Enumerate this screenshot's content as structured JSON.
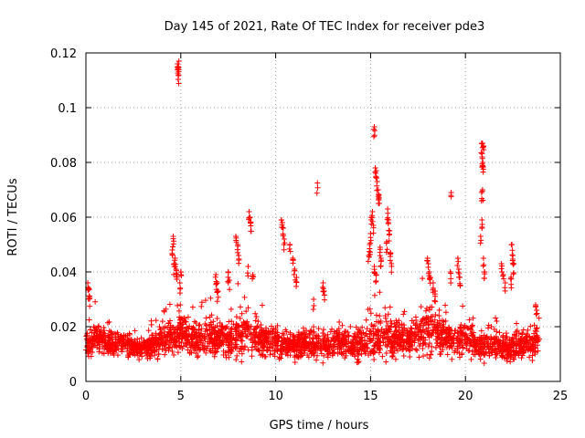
{
  "colors": {
    "series": "#ff0000",
    "axis": "#000000",
    "grid": "#a0a0a0"
  },
  "chart_data": {
    "type": "scatter",
    "title": "Day 145 of 2021, Rate Of TEC Index for receiver pde3",
    "xlabel": "GPS time / hours",
    "ylabel": "ROTI / TECUs",
    "xlim": [
      0,
      25
    ],
    "ylim": [
      0,
      0.12
    ],
    "xticks": [
      0,
      5,
      10,
      15,
      20,
      25
    ],
    "yticks": [
      0,
      0.02,
      0.04,
      0.06,
      0.08,
      0.1,
      0.12
    ],
    "xtick_labels": [
      "0",
      "5",
      "10",
      "15",
      "20",
      "25"
    ],
    "ytick_labels": [
      "0",
      "0.02",
      "0.04",
      "0.06",
      "0.08",
      "0.1",
      "0.12"
    ],
    "grid": true,
    "marker": "+",
    "series": [
      {
        "name": "ROTI",
        "baseline": {
          "x": [
            0,
            0.5,
            1,
            1.5,
            2,
            2.5,
            3,
            3.5,
            4,
            4.5,
            5,
            5.5,
            6,
            6.5,
            7,
            7.5,
            8,
            8.5,
            9,
            9.5,
            10,
            10.5,
            11,
            11.5,
            12,
            12.5,
            13,
            13.5,
            14,
            14.5,
            15,
            15.5,
            16,
            16.5,
            17,
            17.5,
            18,
            18.5,
            19,
            19.5,
            20,
            20.5,
            21,
            21.5,
            22,
            22.5,
            23,
            23.5,
            23.9
          ],
          "y": [
            0.013,
            0.016,
            0.014,
            0.013,
            0.014,
            0.012,
            0.012,
            0.013,
            0.015,
            0.017,
            0.018,
            0.016,
            0.015,
            0.016,
            0.015,
            0.016,
            0.016,
            0.018,
            0.016,
            0.015,
            0.014,
            0.014,
            0.013,
            0.014,
            0.013,
            0.014,
            0.013,
            0.014,
            0.013,
            0.014,
            0.015,
            0.016,
            0.016,
            0.016,
            0.015,
            0.017,
            0.018,
            0.017,
            0.016,
            0.015,
            0.016,
            0.014,
            0.013,
            0.013,
            0.013,
            0.012,
            0.013,
            0.013,
            0.014
          ],
          "spread": [
            0.005,
            0.006,
            0.005,
            0.005,
            0.004,
            0.004,
            0.004,
            0.005,
            0.006,
            0.007,
            0.007,
            0.006,
            0.006,
            0.007,
            0.007,
            0.008,
            0.007,
            0.008,
            0.007,
            0.006,
            0.005,
            0.005,
            0.005,
            0.005,
            0.005,
            0.006,
            0.005,
            0.005,
            0.005,
            0.006,
            0.008,
            0.008,
            0.007,
            0.007,
            0.007,
            0.008,
            0.009,
            0.008,
            0.007,
            0.007,
            0.007,
            0.006,
            0.005,
            0.005,
            0.005,
            0.005,
            0.005,
            0.005,
            0.006
          ]
        },
        "spikes": [
          {
            "x": 0.1,
            "y": 0.036
          },
          {
            "x": 0.15,
            "y": 0.034
          },
          {
            "x": 0.2,
            "y": 0.031
          },
          {
            "x": 4.6,
            "y": 0.053
          },
          {
            "x": 4.55,
            "y": 0.048
          },
          {
            "x": 4.7,
            "y": 0.045
          },
          {
            "x": 4.75,
            "y": 0.041
          },
          {
            "x": 4.8,
            "y": 0.039
          },
          {
            "x": 4.65,
            "y": 0.043
          },
          {
            "x": 4.83,
            "y": 0.116
          },
          {
            "x": 4.86,
            "y": 0.115
          },
          {
            "x": 4.9,
            "y": 0.117
          },
          {
            "x": 4.88,
            "y": 0.112
          },
          {
            "x": 5.0,
            "y": 0.04
          },
          {
            "x": 4.95,
            "y": 0.036
          },
          {
            "x": 6.85,
            "y": 0.039
          },
          {
            "x": 6.9,
            "y": 0.036
          },
          {
            "x": 6.95,
            "y": 0.033
          },
          {
            "x": 7.5,
            "y": 0.04
          },
          {
            "x": 7.55,
            "y": 0.037
          },
          {
            "x": 7.9,
            "y": 0.053
          },
          {
            "x": 8.0,
            "y": 0.05
          },
          {
            "x": 8.05,
            "y": 0.046
          },
          {
            "x": 8.6,
            "y": 0.062
          },
          {
            "x": 8.65,
            "y": 0.06
          },
          {
            "x": 8.7,
            "y": 0.058
          },
          {
            "x": 8.55,
            "y": 0.042
          },
          {
            "x": 8.8,
            "y": 0.039
          },
          {
            "x": 10.3,
            "y": 0.059
          },
          {
            "x": 10.35,
            "y": 0.058
          },
          {
            "x": 10.4,
            "y": 0.056
          },
          {
            "x": 10.45,
            "y": 0.052
          },
          {
            "x": 10.75,
            "y": 0.05
          },
          {
            "x": 10.9,
            "y": 0.045
          },
          {
            "x": 11.0,
            "y": 0.041
          },
          {
            "x": 11.1,
            "y": 0.038
          },
          {
            "x": 12.2,
            "y": 0.0725
          },
          {
            "x": 12.5,
            "y": 0.036
          },
          {
            "x": 12.55,
            "y": 0.033
          },
          {
            "x": 12.0,
            "y": 0.03
          },
          {
            "x": 15.2,
            "y": 0.093
          },
          {
            "x": 15.25,
            "y": 0.078
          },
          {
            "x": 15.3,
            "y": 0.077
          },
          {
            "x": 15.35,
            "y": 0.073
          },
          {
            "x": 15.4,
            "y": 0.07
          },
          {
            "x": 15.45,
            "y": 0.068
          },
          {
            "x": 15.1,
            "y": 0.062
          },
          {
            "x": 15.05,
            "y": 0.06
          },
          {
            "x": 15.15,
            "y": 0.057
          },
          {
            "x": 15.0,
            "y": 0.054
          },
          {
            "x": 14.95,
            "y": 0.05
          },
          {
            "x": 14.9,
            "y": 0.046
          },
          {
            "x": 15.5,
            "y": 0.049
          },
          {
            "x": 15.55,
            "y": 0.045
          },
          {
            "x": 15.2,
            "y": 0.042
          },
          {
            "x": 15.3,
            "y": 0.039
          },
          {
            "x": 15.9,
            "y": 0.063
          },
          {
            "x": 15.95,
            "y": 0.059
          },
          {
            "x": 16.0,
            "y": 0.055
          },
          {
            "x": 15.85,
            "y": 0.051
          },
          {
            "x": 16.05,
            "y": 0.047
          },
          {
            "x": 16.1,
            "y": 0.043
          },
          {
            "x": 18.0,
            "y": 0.045
          },
          {
            "x": 18.05,
            "y": 0.043
          },
          {
            "x": 18.1,
            "y": 0.04
          },
          {
            "x": 18.15,
            "y": 0.038
          },
          {
            "x": 18.3,
            "y": 0.036
          },
          {
            "x": 18.4,
            "y": 0.033
          },
          {
            "x": 19.25,
            "y": 0.069
          },
          {
            "x": 19.2,
            "y": 0.04
          },
          {
            "x": 19.6,
            "y": 0.045
          },
          {
            "x": 19.65,
            "y": 0.041
          },
          {
            "x": 19.7,
            "y": 0.038
          },
          {
            "x": 20.85,
            "y": 0.087
          },
          {
            "x": 20.9,
            "y": 0.087
          },
          {
            "x": 20.95,
            "y": 0.086
          },
          {
            "x": 20.88,
            "y": 0.082
          },
          {
            "x": 20.92,
            "y": 0.08
          },
          {
            "x": 20.9,
            "y": 0.07
          },
          {
            "x": 20.85,
            "y": 0.069
          },
          {
            "x": 20.87,
            "y": 0.059
          },
          {
            "x": 20.8,
            "y": 0.053
          },
          {
            "x": 20.95,
            "y": 0.045
          },
          {
            "x": 21.0,
            "y": 0.04
          },
          {
            "x": 21.9,
            "y": 0.043
          },
          {
            "x": 22.0,
            "y": 0.039
          },
          {
            "x": 22.1,
            "y": 0.036
          },
          {
            "x": 22.45,
            "y": 0.05
          },
          {
            "x": 22.5,
            "y": 0.046
          },
          {
            "x": 22.55,
            "y": 0.043
          },
          {
            "x": 22.4,
            "y": 0.038
          },
          {
            "x": 23.7,
            "y": 0.028
          },
          {
            "x": 23.75,
            "y": 0.026
          }
        ]
      }
    ]
  }
}
